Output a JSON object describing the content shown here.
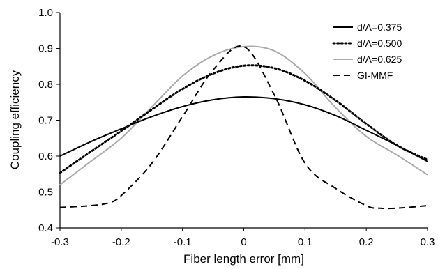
{
  "chart_data": {
    "type": "line",
    "xlabel": "Fiber length error [mm]",
    "ylabel": "Coupling efficiency",
    "xlim": [
      -0.3,
      0.3
    ],
    "ylim": [
      0.4,
      1.0
    ],
    "xticks": [
      "-0.3",
      "-0.2",
      "-0.1",
      "0",
      "0.1",
      "0.2",
      "0.3"
    ],
    "yticks": [
      "0.4",
      "0.5",
      "0.6",
      "0.7",
      "0.8",
      "0.9",
      "1.0"
    ],
    "grid": false,
    "legend_position": "top-right",
    "series": [
      {
        "name": "d/Λ=0.375",
        "color": "#000000",
        "dash": "solid",
        "x": [
          -0.3,
          -0.25,
          -0.2,
          -0.15,
          -0.1,
          -0.05,
          0,
          0.05,
          0.1,
          0.15,
          0.2,
          0.25,
          0.3
        ],
        "y": [
          0.6,
          0.64,
          0.676,
          0.71,
          0.738,
          0.757,
          0.765,
          0.76,
          0.743,
          0.713,
          0.672,
          0.63,
          0.585
        ]
      },
      {
        "name": "d/Λ=0.500",
        "color": "#000000",
        "dash": "dotted",
        "x": [
          -0.3,
          -0.25,
          -0.2,
          -0.15,
          -0.1,
          -0.05,
          0,
          0.05,
          0.1,
          0.15,
          0.2,
          0.25,
          0.3
        ],
        "y": [
          0.553,
          0.612,
          0.67,
          0.73,
          0.787,
          0.83,
          0.852,
          0.845,
          0.81,
          0.755,
          0.69,
          0.63,
          0.59
        ]
      },
      {
        "name": "d/Λ=0.625",
        "color": "#aaaaaa",
        "dash": "solid",
        "x": [
          -0.3,
          -0.25,
          -0.2,
          -0.15,
          -0.1,
          -0.05,
          0,
          0.05,
          0.1,
          0.15,
          0.2,
          0.25,
          0.3
        ],
        "y": [
          0.52,
          0.585,
          0.65,
          0.737,
          0.823,
          0.88,
          0.905,
          0.893,
          0.83,
          0.735,
          0.655,
          0.603,
          0.548
        ]
      },
      {
        "name": "GI-MMF",
        "color": "#000000",
        "dash": "dashed",
        "x": [
          -0.3,
          -0.25,
          -0.22,
          -0.2,
          -0.15,
          -0.1,
          -0.05,
          0,
          0.05,
          0.1,
          0.15,
          0.2,
          0.22,
          0.25,
          0.3
        ],
        "y": [
          0.457,
          0.462,
          0.47,
          0.49,
          0.58,
          0.71,
          0.84,
          0.905,
          0.77,
          0.58,
          0.51,
          0.462,
          0.455,
          0.455,
          0.462
        ]
      }
    ]
  }
}
